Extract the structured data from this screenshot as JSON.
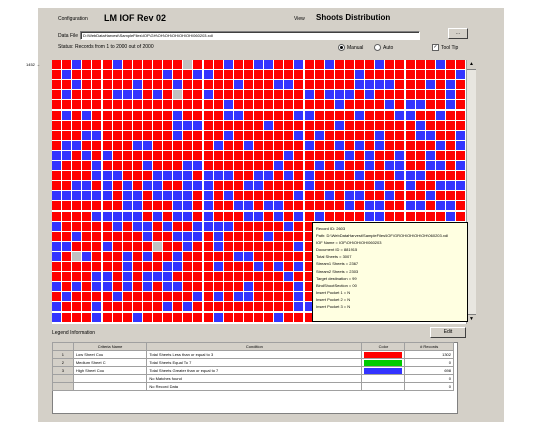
{
  "header": {
    "configuration_label": "Configuration",
    "configuration_value": "LM IOF Rev 02",
    "view_label": "View",
    "view_value": "Shoots Distribution"
  },
  "data_file": {
    "label": "Data File",
    "value": "D:\\WebDataHarvest\\SampleFiles\\IOF\\GH\\OH\\OH\\OH\\OH\\OH\\060203.xdl",
    "browse_label": "..."
  },
  "status": {
    "text": "Status: Records from 1 to 2000 out of 2000"
  },
  "options": {
    "manual_label": "Manual",
    "auto_label": "Auto",
    "tool_tip_label": "Tool Tip",
    "tool_tip_mark": "✓"
  },
  "row_label": "1452 →",
  "colors": {
    "red": "#ff0000",
    "blue": "#3333ff",
    "gray": "#c0c0c0",
    "green": "#00cc00",
    "background": "#d4d0c8"
  },
  "tooltip": {
    "lines": [
      "Record ID: 2603",
      "Path: D:\\WebDataHarvest\\SampleFiles\\IOF\\GROH\\OH\\OH\\OH\\060203.xdl",
      "IOF Name = IOF\\OH\\OH\\OH\\060203",
      "Document ID = 881915",
      "Total Sheets = 3007",
      "Stream1 Sheets = 2367",
      "Stream2 Sheets = 2303",
      "Target destination = 99",
      "BindShootSection = 00",
      "Insert Pocket 1 = N",
      "Insert Pocket 2 = N",
      "Insert Pocket 3 = N"
    ]
  },
  "legend": {
    "title": "Legend Information",
    "edit_label": "Edit",
    "columns": [
      "",
      "Criteria Name",
      "Condition",
      "Color",
      "# Records"
    ],
    "rows": [
      {
        "num": "1",
        "name": "Low Sheet Cou",
        "condition": "Total Sheets Less than or equal to 3",
        "color": "red",
        "records": "1302"
      },
      {
        "num": "2",
        "name": "Medium Sheet C",
        "condition": "Total Sheets Equal To 7",
        "color": "green",
        "records": "0"
      },
      {
        "num": "3",
        "name": "High Sheet Cou",
        "condition": "Total Sheets Greater than or equal to 7",
        "color": "blue",
        "records": "698"
      },
      {
        "num": "",
        "name": "",
        "condition": "No Matches found",
        "color": "",
        "records": "0"
      },
      {
        "num": "",
        "name": "",
        "condition": "No Record Data",
        "color": "empty",
        "records": "0"
      }
    ]
  }
}
